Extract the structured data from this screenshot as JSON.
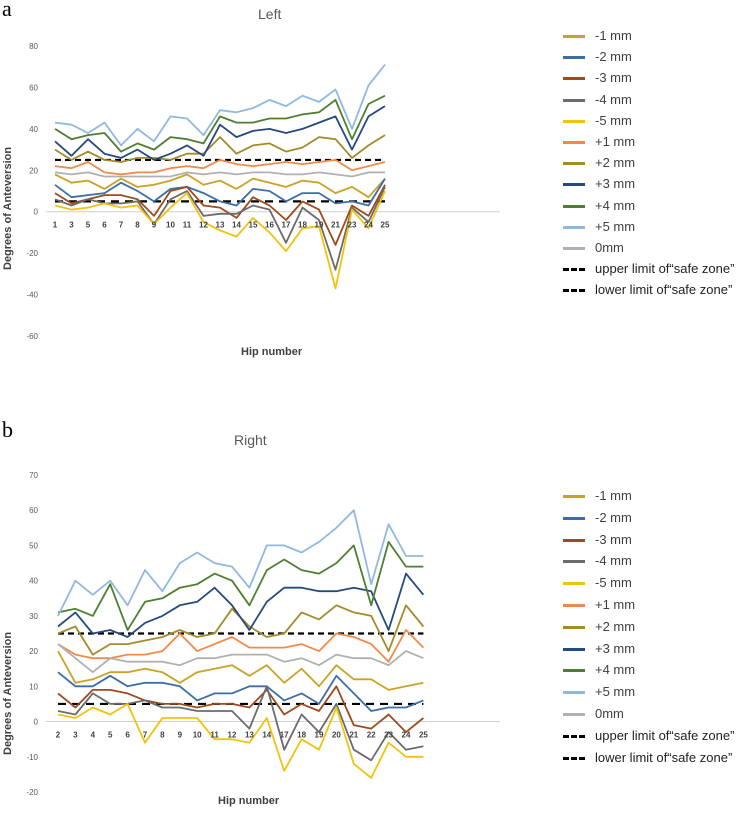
{
  "chart_data": [
    {
      "panel_label": "a",
      "type": "line",
      "title": "Left",
      "xlabel": "Hip number",
      "ylabel": "Degrees of Anteversion",
      "ylim": [
        -60,
        80
      ],
      "yticks": [
        -60,
        -40,
        -20,
        0,
        20,
        40,
        60,
        80
      ],
      "categories": [
        "1",
        "3",
        "5",
        "6",
        "7",
        "8",
        "9",
        "10",
        "11",
        "12",
        "13",
        "14",
        "15",
        "16",
        "17",
        "18",
        "19",
        "21",
        "23",
        "24",
        "25"
      ],
      "grid": false,
      "legend_position": "right",
      "series": [
        {
          "name": "-1 mm",
          "color": "#c9a227",
          "values": [
            18,
            14,
            15,
            11,
            16,
            12,
            13,
            15,
            18,
            13,
            15,
            11,
            16,
            14,
            12,
            15,
            14,
            9,
            12,
            7,
            16
          ]
        },
        {
          "name": "-2 mm",
          "color": "#3b6ea8",
          "values": [
            13,
            7,
            8,
            9,
            14,
            10,
            5,
            11,
            12,
            9,
            5,
            3,
            11,
            10,
            5,
            9,
            9,
            4,
            5,
            3,
            16
          ]
        },
        {
          "name": "-3 mm",
          "color": "#9e4a1c",
          "values": [
            9,
            4,
            6,
            8,
            8,
            6,
            -2,
            10,
            12,
            3,
            2,
            -3,
            7,
            3,
            -4,
            5,
            1,
            -16,
            3,
            -2,
            13
          ]
        },
        {
          "name": "-4 mm",
          "color": "#6b6b6b",
          "values": [
            6,
            3,
            6,
            4,
            4,
            5,
            -6,
            6,
            10,
            -2,
            -1,
            -1,
            3,
            1,
            -15,
            2,
            -4,
            -28,
            2,
            -5,
            12
          ]
        },
        {
          "name": "-5 mm",
          "color": "#f2c20f",
          "values": [
            3,
            1,
            2,
            4,
            2,
            3,
            -6,
            2,
            9,
            -5,
            -9,
            -12,
            -3,
            -10,
            -19,
            -8,
            -7,
            -37,
            1,
            -8,
            10
          ]
        },
        {
          "name": "+1 mm",
          "color": "#ef8a4c",
          "values": [
            22,
            21,
            24,
            19,
            18,
            19,
            19,
            21,
            22,
            21,
            25,
            23,
            22,
            23,
            24,
            23,
            24,
            25,
            20,
            22,
            24
          ]
        },
        {
          "name": "+2 mm",
          "color": "#a38a2a",
          "values": [
            30,
            25,
            29,
            25,
            24,
            26,
            26,
            25,
            28,
            28,
            36,
            28,
            32,
            33,
            29,
            31,
            36,
            35,
            26,
            32,
            37
          ]
        },
        {
          "name": "+3 mm",
          "color": "#254a7f",
          "values": [
            34,
            27,
            35,
            28,
            26,
            30,
            25,
            28,
            32,
            27,
            42,
            36,
            39,
            40,
            38,
            40,
            43,
            46,
            30,
            46,
            51
          ]
        },
        {
          "name": "+4 mm",
          "color": "#4e7f2f",
          "values": [
            40,
            35,
            37,
            38,
            29,
            33,
            30,
            36,
            35,
            33,
            46,
            43,
            43,
            45,
            45,
            47,
            48,
            54,
            35,
            52,
            56
          ]
        },
        {
          "name": "+5 mm",
          "color": "#8fb9e0",
          "values": [
            43,
            42,
            38,
            43,
            32,
            40,
            34,
            46,
            45,
            37,
            49,
            48,
            50,
            54,
            51,
            56,
            53,
            59,
            40,
            61,
            71
          ]
        },
        {
          "name": "0mm",
          "color": "#b0b0b0",
          "values": [
            19,
            18,
            19,
            17,
            17,
            17,
            17,
            17,
            19,
            18,
            19,
            18,
            19,
            19,
            18,
            18,
            19,
            18,
            17,
            19,
            19
          ]
        }
      ],
      "limits": [
        {
          "name": "upper limit of“safe zone”",
          "value": 25
        },
        {
          "name": "lower limit of“safe zone”",
          "value": 5
        }
      ]
    },
    {
      "panel_label": "b",
      "type": "line",
      "title": "Right",
      "xlabel": "Hip number",
      "ylabel": "Degrees of Anteversion",
      "ylim": [
        -20,
        70
      ],
      "yticks": [
        -20,
        -10,
        0,
        10,
        20,
        30,
        40,
        50,
        60,
        70
      ],
      "categories": [
        "2",
        "3",
        "4",
        "5",
        "6",
        "7",
        "8",
        "9",
        "10",
        "11",
        "12",
        "13",
        "14",
        "17",
        "18",
        "19",
        "20",
        "21",
        "22",
        "23",
        "24",
        "25"
      ],
      "grid": false,
      "legend_position": "right",
      "series": [
        {
          "name": "-1 mm",
          "color": "#c9a227",
          "values": [
            20,
            11,
            12,
            14,
            14,
            15,
            14,
            11,
            14,
            15,
            16,
            13,
            16,
            11,
            15,
            10,
            16,
            12,
            12,
            9,
            10,
            11
          ]
        },
        {
          "name": "-2 mm",
          "color": "#3b6ea8",
          "values": [
            14,
            10,
            10,
            13,
            10,
            11,
            11,
            10,
            6,
            8,
            8,
            10,
            10,
            6,
            8,
            5,
            13,
            8,
            3,
            4,
            4,
            6
          ]
        },
        {
          "name": "-3 mm",
          "color": "#9e4a1c",
          "values": [
            8,
            4,
            9,
            9,
            8,
            6,
            5,
            5,
            4,
            5,
            5,
            4,
            9,
            2,
            5,
            3,
            10,
            -1,
            -2,
            2,
            -3,
            1
          ]
        },
        {
          "name": "-4 mm",
          "color": "#6b6b6b",
          "values": [
            3,
            2,
            8,
            5,
            5,
            6,
            4,
            4,
            3,
            3,
            3,
            -2,
            10,
            -8,
            2,
            -3,
            5,
            -8,
            -11,
            -3,
            -8,
            -7
          ]
        },
        {
          "name": "-5 mm",
          "color": "#f2c20f",
          "values": [
            2,
            1,
            4,
            2,
            5,
            -6,
            1,
            1,
            1,
            -5,
            -5,
            -6,
            1,
            -14,
            -5,
            -8,
            4,
            -12,
            -16,
            -6,
            -10,
            -10
          ]
        },
        {
          "name": "+1 mm",
          "color": "#ef8a4c",
          "values": [
            22,
            19,
            18,
            18,
            19,
            19,
            20,
            25,
            20,
            22,
            24,
            21,
            21,
            21,
            22,
            20,
            25,
            24,
            22,
            17,
            26,
            21
          ]
        },
        {
          "name": "+2 mm",
          "color": "#a38a2a",
          "values": [
            25,
            27,
            19,
            22,
            22,
            23,
            24,
            26,
            24,
            25,
            32,
            27,
            24,
            25,
            31,
            29,
            33,
            31,
            30,
            20,
            33,
            27
          ]
        },
        {
          "name": "+3 mm",
          "color": "#254a7f",
          "values": [
            27,
            31,
            25,
            26,
            24,
            28,
            30,
            33,
            34,
            38,
            33,
            26,
            34,
            38,
            38,
            37,
            37,
            38,
            37,
            26,
            42,
            36
          ]
        },
        {
          "name": "+4 mm",
          "color": "#4e7f2f",
          "values": [
            31,
            32,
            30,
            39,
            26,
            34,
            35,
            38,
            39,
            42,
            40,
            33,
            43,
            46,
            43,
            42,
            45,
            50,
            33,
            51,
            44,
            44
          ]
        },
        {
          "name": "+5 mm",
          "color": "#8fb9e0",
          "values": [
            30,
            40,
            36,
            40,
            33,
            43,
            37,
            45,
            48,
            45,
            44,
            38,
            50,
            50,
            48,
            51,
            55,
            60,
            39,
            56,
            47,
            47
          ]
        },
        {
          "name": "0mm",
          "color": "#b0b0b0",
          "values": [
            22,
            18,
            14,
            18,
            17,
            17,
            17,
            16,
            18,
            18,
            19,
            19,
            19,
            17,
            18,
            16,
            19,
            18,
            18,
            16,
            20,
            18
          ]
        }
      ],
      "limits": [
        {
          "name": "upper limit of“safe zone”",
          "value": 25
        },
        {
          "name": "lower limit of“safe zone”",
          "value": 5
        }
      ]
    }
  ]
}
